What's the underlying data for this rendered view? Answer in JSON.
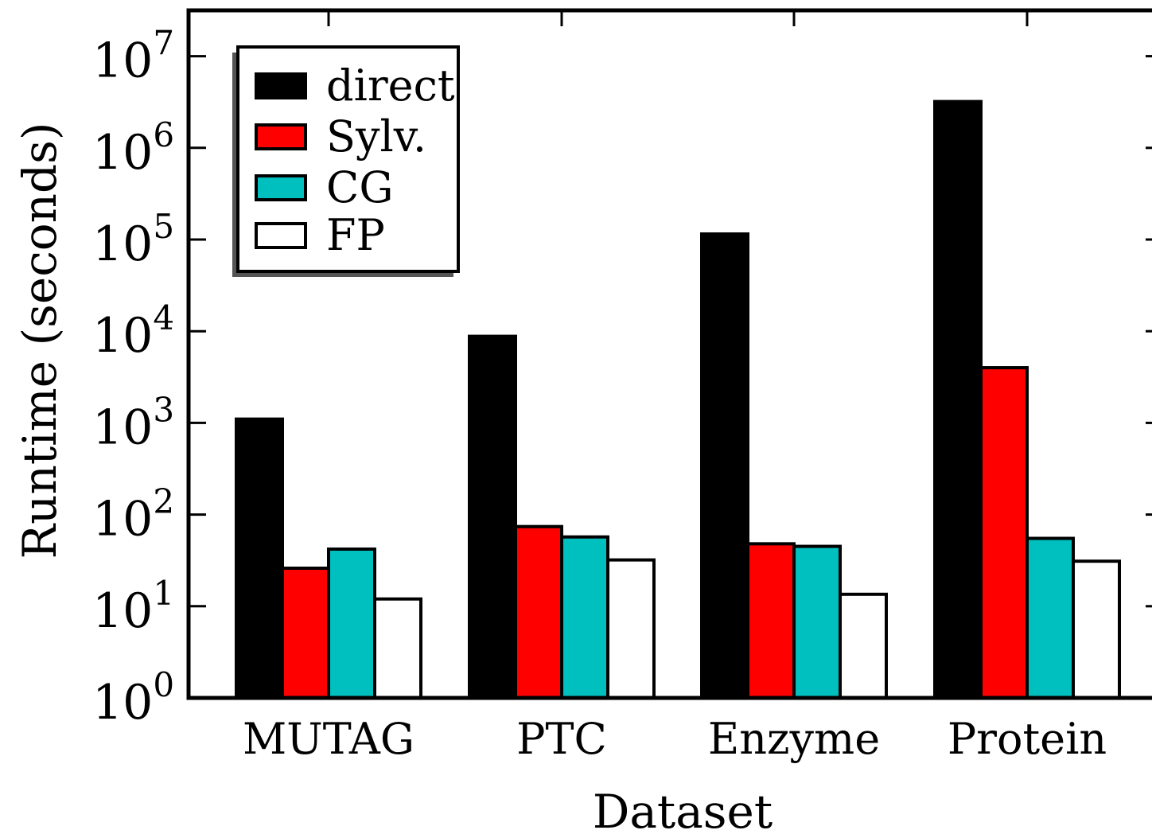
{
  "chart_data": {
    "type": "bar",
    "ylabel": "Runtime (seconds)",
    "xlabel": "Dataset",
    "yscale": "log",
    "ylim": [
      1,
      30000000
    ],
    "ytick_exponents": [
      "0",
      "1",
      "2",
      "3",
      "4",
      "5",
      "6",
      "7"
    ],
    "ytick_base": "10",
    "categories": [
      "MUTAG",
      "PTC",
      "Enzyme",
      "Protein"
    ],
    "series": [
      {
        "name": "direct",
        "color": "#000000",
        "values": [
          1100,
          8800,
          115000,
          3200000
        ]
      },
      {
        "name": "Sylv.",
        "color": "#ff0000",
        "values": [
          26,
          74,
          48,
          4000
        ]
      },
      {
        "name": "CG",
        "color": "#00bfbf",
        "values": [
          42,
          57,
          45,
          55
        ]
      },
      {
        "name": "FP",
        "color": "#ffffff",
        "values": [
          12,
          32,
          13.5,
          31
        ]
      }
    ],
    "legend_position": "top-left",
    "grid": false
  }
}
